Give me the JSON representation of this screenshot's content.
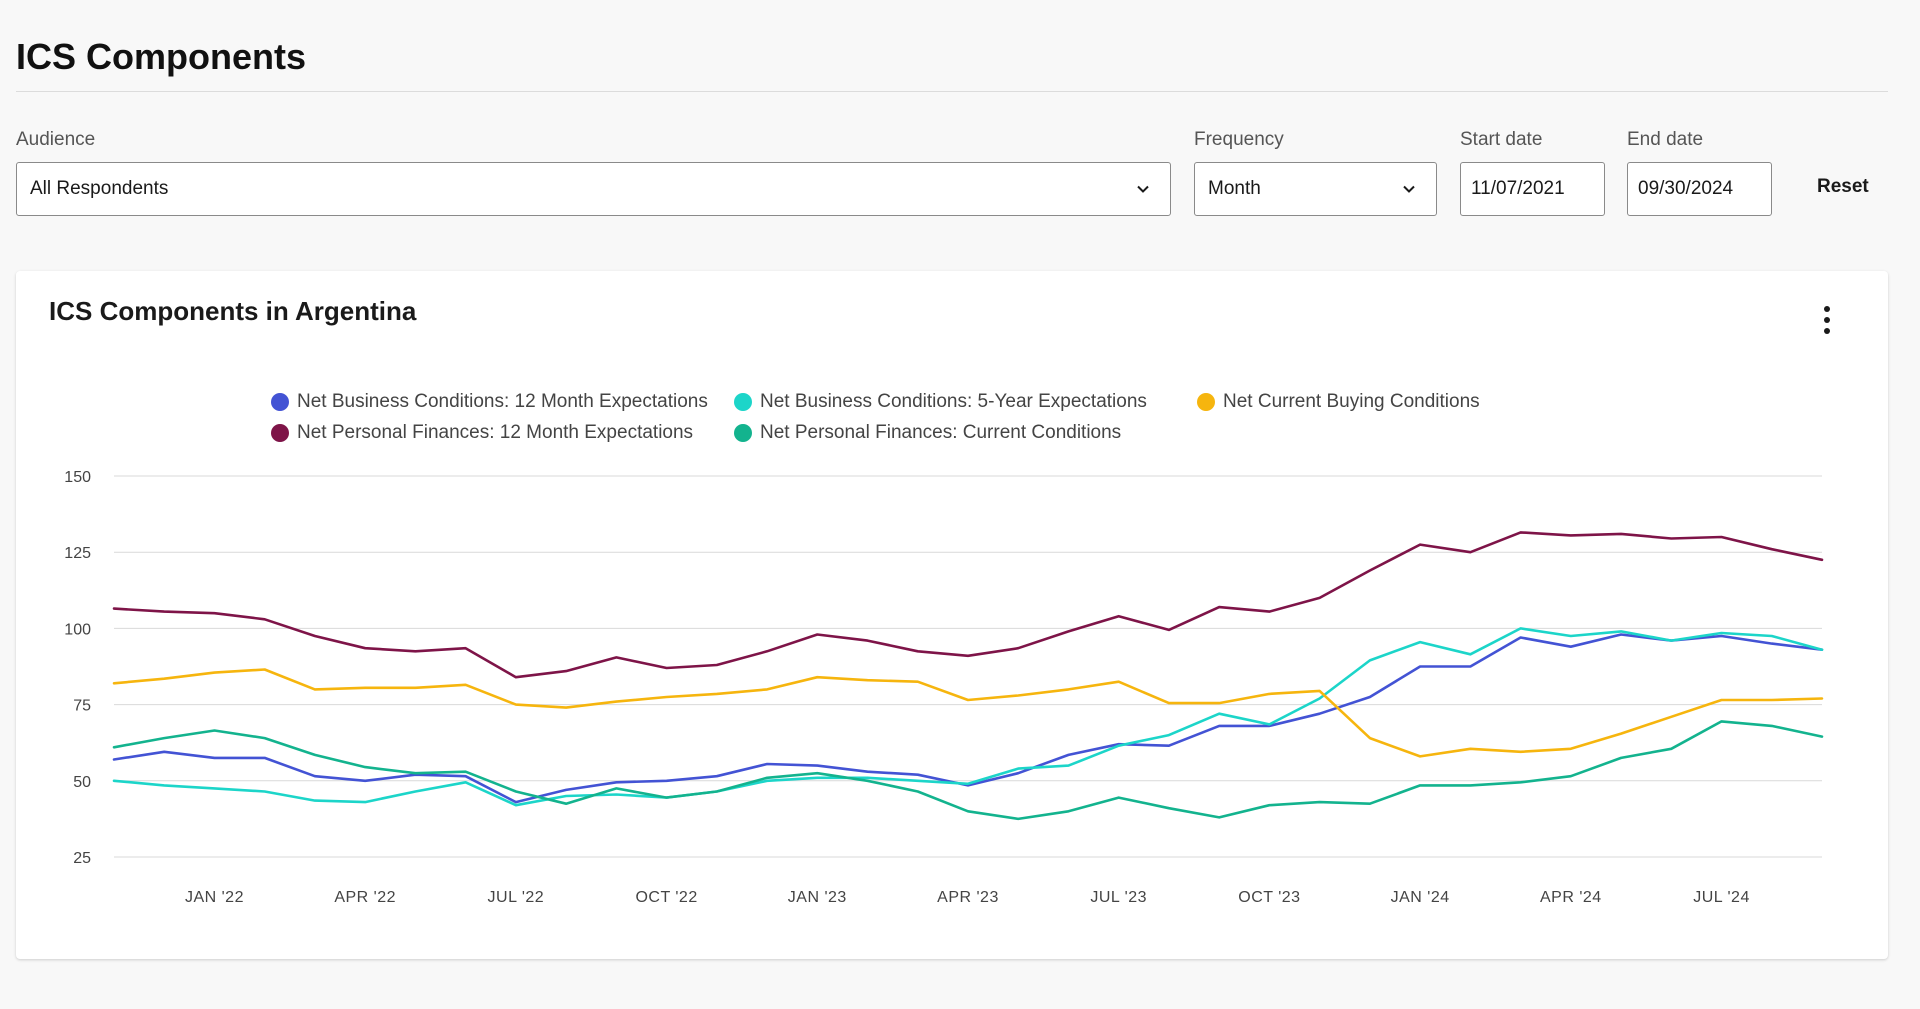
{
  "page": {
    "title": "ICS Components"
  },
  "filters": {
    "audience": {
      "label": "Audience",
      "value": "All Respondents",
      "icon": "chevron-down-icon"
    },
    "frequency": {
      "label": "Frequency",
      "value": "Month",
      "icon": "chevron-down-icon"
    },
    "start_date": {
      "label": "Start date",
      "value": "11/07/2021"
    },
    "end_date": {
      "label": "End date",
      "value": "09/30/2024"
    },
    "reset_label": "Reset"
  },
  "card": {
    "title": "ICS Components in Argentina",
    "menu_icon": "more-vertical-icon"
  },
  "chart_data": {
    "type": "line",
    "title": "ICS Components in Argentina",
    "xlabel": "",
    "ylabel": "",
    "ylim": [
      25,
      150
    ],
    "yticks": [
      150,
      125,
      100,
      75,
      50,
      25
    ],
    "grid": true,
    "legend_position": "top",
    "x": [
      "Nov 2021",
      "Dec 2021",
      "Jan 2022",
      "Feb 2022",
      "Mar 2022",
      "Apr 2022",
      "May 2022",
      "Jun 2022",
      "Jul 2022",
      "Aug 2022",
      "Sep 2022",
      "Oct 2022",
      "Nov 2022",
      "Dec 2022",
      "Jan 2023",
      "Feb 2023",
      "Mar 2023",
      "Apr 2023",
      "May 2023",
      "Jun 2023",
      "Jul 2023",
      "Aug 2023",
      "Sep 2023",
      "Oct 2023",
      "Nov 2023",
      "Dec 2023",
      "Jan 2024",
      "Feb 2024",
      "Mar 2024",
      "Apr 2024",
      "May 2024",
      "Jun 2024",
      "Jul 2024",
      "Aug 2024",
      "Sep 2024"
    ],
    "xtick_labels": [
      {
        "index": 2,
        "label": "JAN '22"
      },
      {
        "index": 5,
        "label": "APR '22"
      },
      {
        "index": 8,
        "label": "JUL '22"
      },
      {
        "index": 11,
        "label": "OCT '22"
      },
      {
        "index": 14,
        "label": "JAN '23"
      },
      {
        "index": 17,
        "label": "APR '23"
      },
      {
        "index": 20,
        "label": "JUL '23"
      },
      {
        "index": 23,
        "label": "OCT '23"
      },
      {
        "index": 26,
        "label": "JAN '24"
      },
      {
        "index": 29,
        "label": "APR '24"
      },
      {
        "index": 32,
        "label": "JUL '24"
      }
    ],
    "series": [
      {
        "name": "Net Business Conditions: 12 Month Expectations",
        "color": "#4353d4",
        "values": [
          57,
          59.5,
          57.5,
          57.5,
          51.5,
          50,
          52,
          51.5,
          43,
          47,
          49.5,
          50,
          51.5,
          55.5,
          55,
          53,
          52,
          48.5,
          52.5,
          58.5,
          62,
          61.5,
          68,
          68,
          72,
          77.5,
          87.5,
          87.5,
          97,
          94,
          98,
          96,
          97.5,
          95,
          93
        ]
      },
      {
        "name": "Net Business Conditions: 5-Year Expectations",
        "color": "#1cd5c9",
        "values": [
          50,
          48.5,
          47.5,
          46.5,
          43.5,
          43,
          46.5,
          49.5,
          42,
          45,
          45.5,
          44.5,
          46.5,
          50,
          51,
          51,
          50,
          49,
          54,
          55,
          61.5,
          65,
          72,
          68.5,
          77,
          89.5,
          95.5,
          91.5,
          100,
          97.5,
          99,
          96,
          98.5,
          97.5,
          93
        ]
      },
      {
        "name": "Net Current Buying Conditions",
        "color": "#f6b50e",
        "values": [
          82,
          83.5,
          85.5,
          86.5,
          80,
          80.5,
          80.5,
          81.5,
          75,
          74,
          76,
          77.5,
          78.5,
          80,
          84,
          83,
          82.5,
          76.5,
          78,
          80,
          82.5,
          75.5,
          75.5,
          78.5,
          79.5,
          64,
          58,
          60.5,
          59.5,
          60.5,
          65.5,
          71,
          76.5,
          76.5,
          77
        ]
      },
      {
        "name": "Net Personal Finances: 12 Month Expectations",
        "color": "#7e1448",
        "values": [
          106.5,
          105.5,
          105,
          103,
          97.5,
          93.5,
          92.5,
          93.5,
          84,
          86,
          90.5,
          87,
          88,
          92.5,
          98,
          96,
          92.5,
          91,
          93.5,
          99,
          104,
          99.5,
          107,
          105.5,
          110,
          119,
          127.5,
          125,
          131.5,
          130.5,
          131,
          129.5,
          130,
          126,
          122.5
        ]
      },
      {
        "name": "Net Personal Finances: Current Conditions",
        "color": "#13b38e",
        "values": [
          61,
          64,
          66.5,
          64,
          58.5,
          54.5,
          52.5,
          53,
          46.5,
          42.5,
          47.5,
          44.5,
          46.5,
          51,
          52.5,
          50,
          46.5,
          40,
          37.5,
          40,
          44.5,
          41,
          38,
          42,
          43,
          42.5,
          48.5,
          48.5,
          49.5,
          51.5,
          57.5,
          60.5,
          69.5,
          68,
          64.5
        ]
      }
    ]
  }
}
